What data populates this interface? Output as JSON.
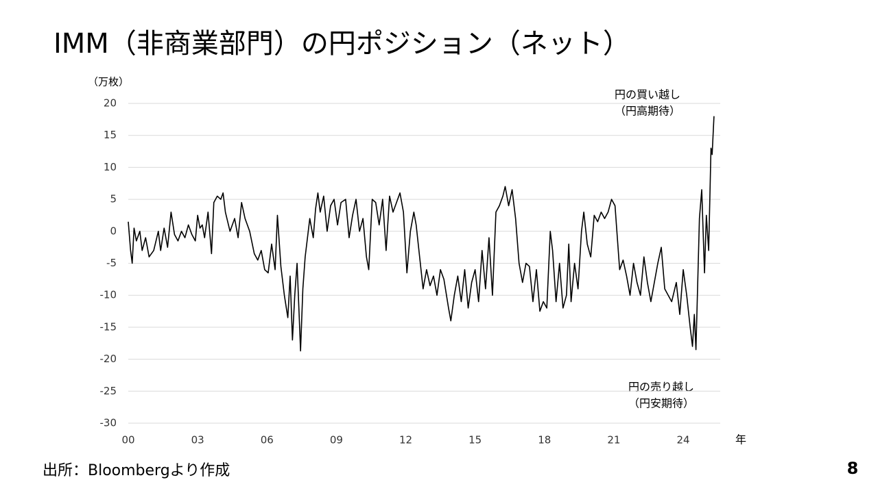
{
  "chart_data": {
    "type": "line",
    "title": "IMM（非商業部門）の円ポジション（ネット）",
    "y_unit": "（万枚）",
    "x_label": "年",
    "annotations": [
      [
        "円の買い越し",
        "（円高期待）"
      ],
      [
        "円の売り越し",
        "（円安期待）"
      ]
    ],
    "color": "#000000",
    "xlim": [
      0,
      25.6
    ],
    "ylim": [
      -30,
      20
    ],
    "xticks": [
      {
        "value": 0,
        "label": "00"
      },
      {
        "value": 3,
        "label": "03"
      },
      {
        "value": 6,
        "label": "06"
      },
      {
        "value": 9,
        "label": "09"
      },
      12,
      15,
      18,
      21,
      24
    ],
    "yticks": [
      -30,
      -25,
      -20,
      -15,
      -10,
      -5,
      0,
      5,
      10,
      15,
      20
    ],
    "grid": true,
    "x": [
      0.0,
      0.1,
      0.17,
      0.25,
      0.35,
      0.5,
      0.6,
      0.75,
      0.9,
      1.1,
      1.3,
      1.4,
      1.55,
      1.7,
      1.85,
      2.0,
      2.15,
      2.3,
      2.45,
      2.6,
      2.75,
      2.9,
      3.0,
      3.1,
      3.2,
      3.3,
      3.45,
      3.6,
      3.7,
      3.85,
      4.0,
      4.1,
      4.2,
      4.4,
      4.6,
      4.75,
      4.9,
      5.05,
      5.25,
      5.45,
      5.6,
      5.75,
      5.9,
      6.05,
      6.2,
      6.35,
      6.45,
      6.6,
      6.75,
      6.9,
      7.0,
      7.1,
      7.2,
      7.3,
      7.4,
      7.45,
      7.55,
      7.65,
      7.85,
      8.0,
      8.1,
      8.2,
      8.3,
      8.45,
      8.6,
      8.75,
      8.9,
      9.05,
      9.2,
      9.4,
      9.55,
      9.7,
      9.85,
      10.0,
      10.15,
      10.3,
      10.4,
      10.55,
      10.7,
      10.85,
      11.0,
      11.15,
      11.3,
      11.45,
      11.6,
      11.75,
      11.9,
      12.05,
      12.2,
      12.35,
      12.45,
      12.6,
      12.75,
      12.9,
      13.05,
      13.2,
      13.35,
      13.5,
      13.65,
      13.85,
      13.95,
      14.1,
      14.25,
      14.4,
      14.55,
      14.7,
      14.85,
      15.0,
      15.15,
      15.3,
      15.45,
      15.6,
      15.75,
      15.9,
      16.05,
      16.2,
      16.3,
      16.45,
      16.6,
      16.75,
      16.9,
      17.05,
      17.2,
      17.35,
      17.5,
      17.65,
      17.8,
      17.95,
      18.1,
      18.25,
      18.35,
      18.5,
      18.65,
      18.8,
      18.95,
      19.05,
      19.15,
      19.3,
      19.45,
      19.6,
      19.7,
      19.85,
      20.0,
      20.15,
      20.3,
      20.45,
      20.6,
      20.75,
      20.9,
      21.05,
      21.15,
      21.25,
      21.4,
      21.55,
      21.7,
      21.85,
      22.0,
      22.15,
      22.3,
      22.45,
      22.6,
      22.75,
      22.9,
      23.05,
      23.2,
      23.35,
      23.5,
      23.7,
      23.85,
      24.0,
      24.15,
      24.3,
      24.4,
      24.48,
      24.55,
      24.7,
      24.8,
      24.92,
      25.0,
      25.1,
      25.2,
      25.25,
      25.33
    ],
    "values": [
      1.5,
      -3,
      -5,
      0.5,
      -1.5,
      0,
      -3,
      -1,
      -4,
      -3,
      0,
      -3,
      0.5,
      -2.5,
      3,
      -0.5,
      -1.5,
      0,
      -1,
      1,
      -0.5,
      -1.5,
      2.5,
      0.5,
      1,
      -1,
      3,
      -3.5,
      4.5,
      5.5,
      5,
      6,
      3,
      0,
      2,
      -1,
      4.5,
      2,
      0,
      -3.5,
      -4.5,
      -3,
      -6,
      -6.5,
      -2,
      -6,
      2.5,
      -5.5,
      -10,
      -13.5,
      -7,
      -17,
      -10,
      -5,
      -14,
      -18.7,
      -9,
      -4,
      2,
      -1,
      3.5,
      6,
      3,
      5.5,
      0,
      4,
      5,
      1,
      4.5,
      5,
      -1,
      2.5,
      5,
      0,
      2,
      -4,
      -6,
      5,
      4.5,
      1,
      5,
      -3,
      5.5,
      3,
      4.5,
      6,
      3,
      -6.5,
      0,
      3,
      1,
      -4,
      -9,
      -6,
      -8.5,
      -7,
      -10,
      -6,
      -7.5,
      -12,
      -14,
      -10,
      -7,
      -11,
      -6,
      -12,
      -8,
      -6,
      -11,
      -3,
      -9,
      -1,
      -10,
      3,
      4,
      5.5,
      7,
      4,
      6.5,
      2,
      -5,
      -8,
      -5,
      -5.5,
      -11,
      -6,
      -12.5,
      -11,
      -12,
      0,
      -3,
      -11,
      -5,
      -12,
      -10,
      -2,
      -11,
      -5,
      -9,
      0,
      3,
      -2,
      -4,
      2.5,
      1.5,
      3,
      2,
      3,
      5,
      4,
      -1,
      -6,
      -4.5,
      -7,
      -10,
      -5,
      -8,
      -10,
      -4,
      -8,
      -11,
      -8,
      -5,
      -2.5,
      -9,
      -10,
      -11,
      -8,
      -13,
      -6,
      -10,
      -15,
      -18,
      -13,
      -18.5,
      2,
      6.5,
      -6.5,
      2.5,
      -3,
      13,
      12,
      18
    ]
  },
  "source": "出所：Bloombergより作成",
  "page_number": "8"
}
